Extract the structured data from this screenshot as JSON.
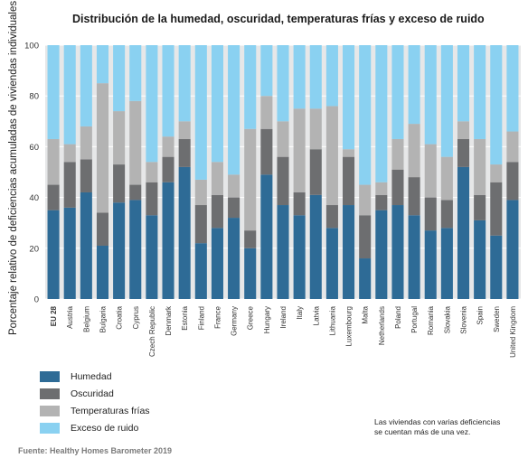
{
  "chart_data": {
    "type": "bar",
    "stacked": true,
    "title": "Distribución de la humedad, oscuridad, temperaturas frías y exceso de ruido",
    "ylabel": "Porcentaje relativo de deficiencias acumuladas de viviendas individuales",
    "xlabel": "",
    "ylim": [
      0,
      100
    ],
    "yticks": [
      0,
      20,
      40,
      60,
      80,
      100
    ],
    "grid": true,
    "legend_position": "bottom-left",
    "categories": [
      "EU 28",
      "Austria",
      "Belgium",
      "Bulgaria",
      "Croatia",
      "Cyprus",
      "Czech Republic",
      "Denmark",
      "Estonia",
      "Finland",
      "France",
      "Germany",
      "Greece",
      "Hungary",
      "Ireland",
      "Italy",
      "Latvia",
      "Lithuania",
      "Luxembourg",
      "Malta",
      "Netherlands",
      "Poland",
      "Portugal",
      "Romania",
      "Slovakia",
      "Slovenia",
      "Spain",
      "Sweden",
      "United Kingdom"
    ],
    "bold_categories": [
      "EU 28"
    ],
    "series": [
      {
        "name": "Humedad",
        "color": "#2e6b96",
        "values": [
          35,
          36,
          42,
          21,
          38,
          39,
          33,
          46,
          52,
          22,
          28,
          32,
          20,
          49,
          37,
          33,
          41,
          28,
          37,
          16,
          35,
          37,
          33,
          27,
          28,
          52,
          31,
          25,
          39
        ]
      },
      {
        "name": "Oscuridad",
        "color": "#6d6e70",
        "values": [
          10,
          18,
          13,
          13,
          15,
          6,
          13,
          10,
          11,
          15,
          13,
          8,
          7,
          18,
          19,
          9,
          18,
          9,
          19,
          17,
          6,
          14,
          15,
          13,
          11,
          11,
          10,
          21,
          15
        ]
      },
      {
        "name": "Temperaturas frías",
        "color": "#b3b3b3",
        "values": [
          18,
          7,
          13,
          51,
          21,
          33,
          8,
          8,
          7,
          10,
          13,
          9,
          40,
          13,
          14,
          33,
          16,
          39,
          3,
          12,
          5,
          12,
          21,
          21,
          17,
          7,
          22,
          7,
          12
        ]
      },
      {
        "name": "Exceso de ruido",
        "color": "#8ad1f1",
        "values": [
          37,
          39,
          32,
          15,
          26,
          22,
          46,
          36,
          30,
          53,
          46,
          51,
          33,
          20,
          30,
          25,
          25,
          24,
          41,
          55,
          54,
          37,
          31,
          39,
          44,
          30,
          37,
          47,
          34
        ]
      }
    ]
  },
  "note": {
    "line1": "Las viviendas con varias deficiencias",
    "line2": "se cuentan más de una vez."
  },
  "source": "Fuente:  Healthy Homes Barometer 2019"
}
